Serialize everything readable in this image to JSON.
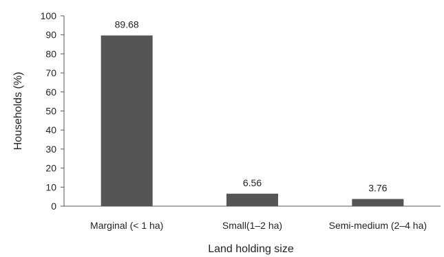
{
  "chart_data": {
    "type": "bar",
    "categories": [
      "Marginal (< 1 ha)",
      "Small(1–2 ha)",
      "Semi-medium (2–4 ha)"
    ],
    "values": [
      89.68,
      6.56,
      3.76
    ],
    "data_labels": [
      "89.68",
      "6.56",
      "3.76"
    ],
    "xlabel": "Land holding size",
    "ylabel": "Households (%)",
    "ylim": [
      0,
      100
    ],
    "yticks": [
      0,
      10,
      20,
      30,
      40,
      50,
      60,
      70,
      80,
      90,
      100
    ],
    "grid": false,
    "legend": "none",
    "bar_color": "#555555"
  }
}
